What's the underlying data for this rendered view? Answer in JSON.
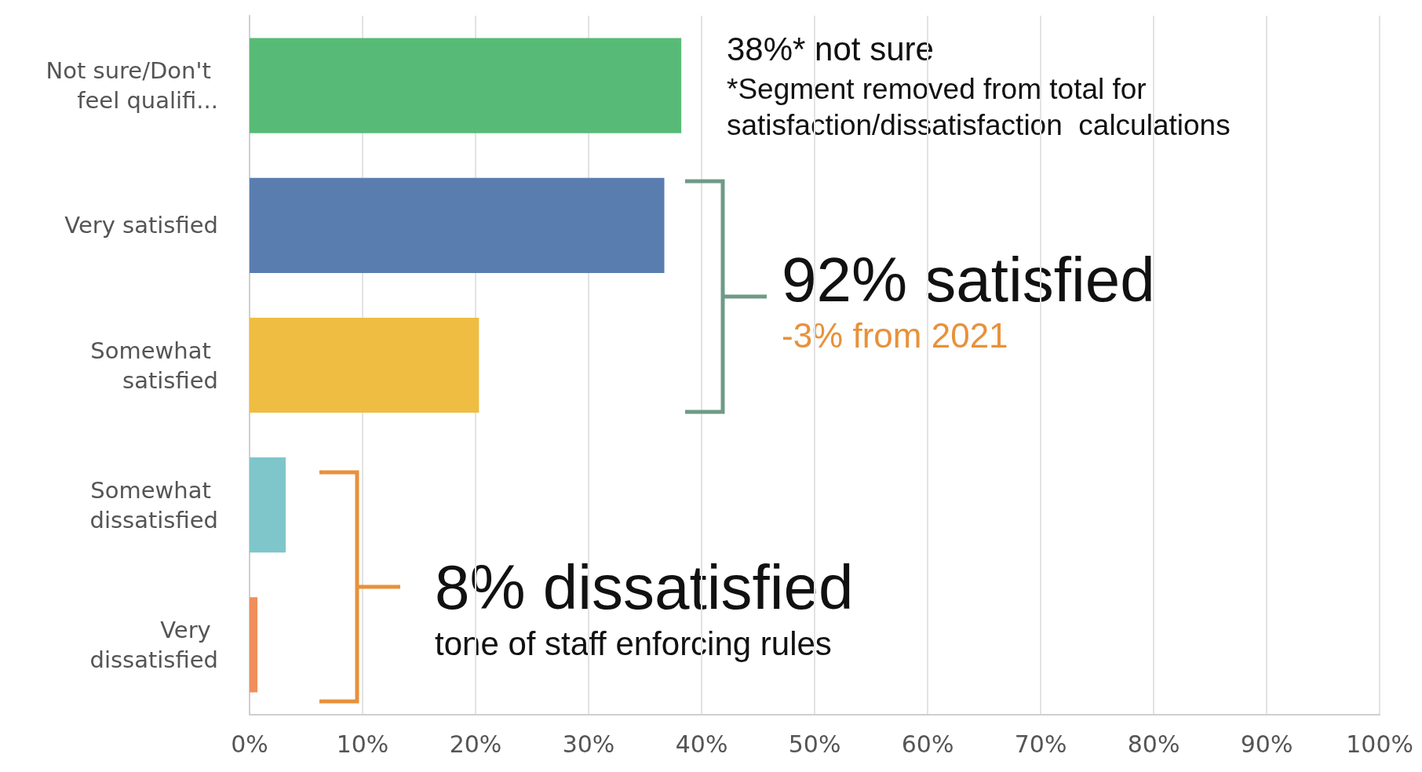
{
  "chart_data": {
    "type": "bar",
    "orientation": "horizontal",
    "categories": [
      "Not sure/Don't feel qualifi...",
      "Very satisfied",
      "Somewhat satisfied",
      "Somewhat dissatisfied",
      "Very dissatisfied"
    ],
    "values": [
      38.2,
      36.7,
      20.3,
      3.2,
      0.7
    ],
    "colors": [
      "#57bb77",
      "#5a7db0",
      "#eebd42",
      "#7ec6ca",
      "#ef8f5b"
    ],
    "xlim": [
      0,
      100
    ],
    "xticks": [
      {
        "value": 0,
        "label": "0%"
      },
      {
        "value": 10,
        "label": "10%"
      },
      {
        "value": 20,
        "label": "20%"
      },
      {
        "value": 30,
        "label": "30%"
      },
      {
        "value": 40,
        "label": "40%"
      },
      {
        "value": 50,
        "label": "50%"
      },
      {
        "value": 60,
        "label": "60%"
      },
      {
        "value": 70,
        "label": "70%"
      },
      {
        "value": 80,
        "label": "80%"
      },
      {
        "value": 90,
        "label": "90%"
      },
      {
        "value": 100,
        "label": "100%"
      }
    ],
    "grid": "x",
    "annotations": [
      "38%* not sure",
      "*Segment removed from total for\nsatisfaction/dissatisfaction  calculations",
      "92% satisfied",
      "-3% from 2021",
      "8% dissatisfied",
      "tone of staff enforcing rules"
    ]
  }
}
